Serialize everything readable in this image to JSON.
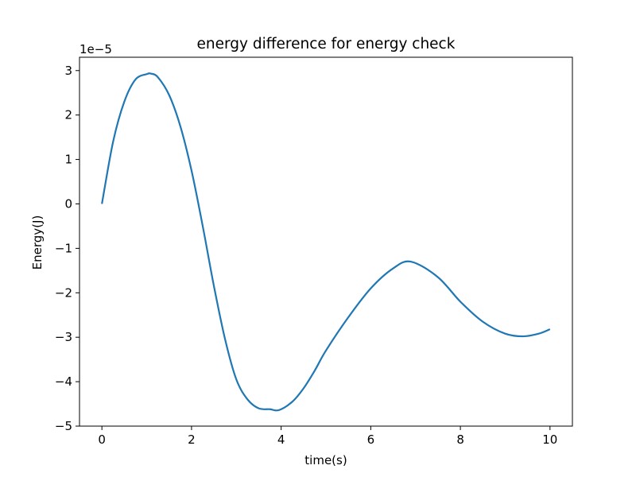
{
  "chart_data": {
    "type": "line",
    "title": "energy difference for energy check",
    "xlabel": "time(s)",
    "ylabel": "Energy(J)",
    "y_offset_label": "1e−5",
    "y_scale_exponent": -5,
    "xlim": [
      -0.5,
      10.5
    ],
    "ylim": [
      -5.0,
      3.3
    ],
    "x_ticks": [
      0,
      2,
      4,
      6,
      8,
      10
    ],
    "x_tick_labels": [
      "0",
      "2",
      "4",
      "6",
      "8",
      "10"
    ],
    "y_ticks": [
      -5,
      -4,
      -3,
      -2,
      -1,
      0,
      1,
      2,
      3
    ],
    "y_tick_labels": [
      "−5",
      "−4",
      "−3",
      "−2",
      "−1",
      "0",
      "1",
      "2",
      "3"
    ],
    "grid": false,
    "series": [
      {
        "color": "#1f77b4",
        "x": [
          0,
          0.25,
          0.5,
          0.75,
          1.0,
          1.1,
          1.25,
          1.5,
          1.75,
          2.0,
          2.25,
          2.5,
          2.75,
          3.0,
          3.25,
          3.5,
          3.75,
          3.95,
          4.25,
          4.5,
          4.75,
          5.0,
          5.5,
          6.0,
          6.5,
          6.9,
          7.5,
          8.0,
          8.5,
          9.0,
          9.4,
          9.75,
          10.0
        ],
        "y": [
          0.0,
          1.4,
          2.3,
          2.8,
          2.92,
          2.93,
          2.85,
          2.45,
          1.75,
          0.75,
          -0.5,
          -1.85,
          -3.05,
          -3.95,
          -4.4,
          -4.6,
          -4.62,
          -4.64,
          -4.45,
          -4.15,
          -3.75,
          -3.3,
          -2.55,
          -1.9,
          -1.45,
          -1.3,
          -1.65,
          -2.2,
          -2.65,
          -2.92,
          -2.98,
          -2.92,
          -2.82
        ]
      }
    ]
  }
}
